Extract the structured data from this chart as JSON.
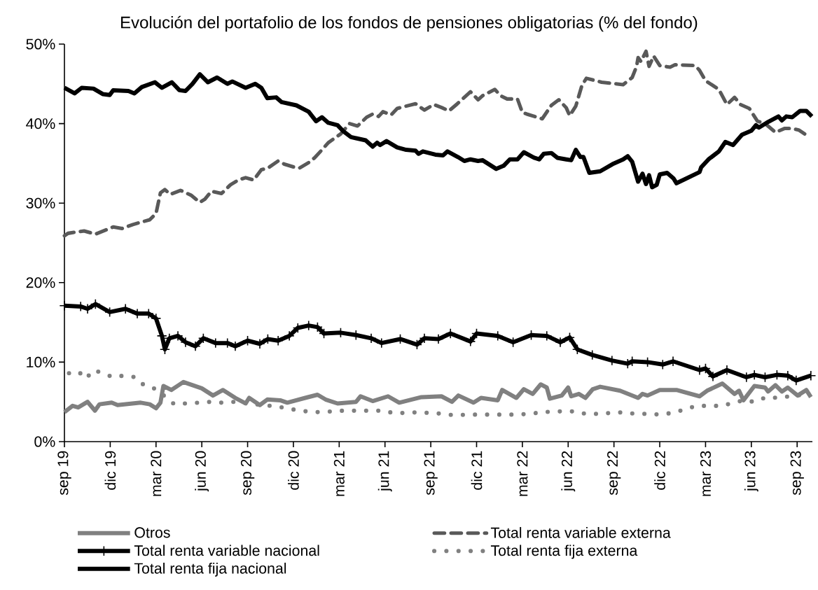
{
  "chart_data": {
    "type": "line",
    "title": "Evolución del portafolio de los fondos de pensiones obligatorias (% del fondo)",
    "xlim": [
      "2019-09-01",
      "2023-10-01"
    ],
    "xticks": [
      {
        "value": "2019-09",
        "label": "sep 19"
      },
      {
        "value": "2019-12",
        "label": "dic 19"
      },
      {
        "value": "2020-03",
        "label": "mar 20"
      },
      {
        "value": "2020-06",
        "label": "jun 20"
      },
      {
        "value": "2020-09",
        "label": "sep 20"
      },
      {
        "value": "2020-12",
        "label": "dic 20"
      },
      {
        "value": "2021-03",
        "label": "mar 21"
      },
      {
        "value": "2021-06",
        "label": "jun 21"
      },
      {
        "value": "2021-09",
        "label": "sep 21"
      },
      {
        "value": "2021-12",
        "label": "dic 21"
      },
      {
        "value": "2022-03",
        "label": "mar 22"
      },
      {
        "value": "2022-06",
        "label": "jun 22"
      },
      {
        "value": "2022-09",
        "label": "sep 22"
      },
      {
        "value": "2022-12",
        "label": "dic 22"
      },
      {
        "value": "2023-03",
        "label": "mar 23"
      },
      {
        "value": "2023-06",
        "label": "jun 23"
      },
      {
        "value": "2023-09",
        "label": "sep 23"
      }
    ],
    "ylim": [
      0,
      50
    ],
    "yticks": [
      {
        "value": 0,
        "label": "0%"
      },
      {
        "value": 10,
        "label": "10%"
      },
      {
        "value": 20,
        "label": "20%"
      },
      {
        "value": 30,
        "label": "30%"
      },
      {
        "value": 40,
        "label": "40%"
      },
      {
        "value": 50,
        "label": "50%"
      }
    ],
    "legend": "bottom",
    "marker": "none",
    "line_style": "solid",
    "series": [
      {
        "name": "Otros",
        "color": "#808080",
        "x": [
          "2019-09-01",
          "2019-09-17",
          "2019-09-28",
          "2019-10-17",
          "2019-11-01",
          "2019-11-10",
          "2019-12-04",
          "2019-12-16",
          "2020-02-01",
          "2020-02-18",
          "2020-03-01",
          "2020-03-10",
          "2020-03-16",
          "2020-04-01",
          "2020-04-25",
          "2020-06-01",
          "2020-06-23",
          "2020-07-13",
          "2020-08-07",
          "2020-08-28",
          "2020-09-04",
          "2020-09-25",
          "2020-10-10",
          "2020-11-05",
          "2020-11-19",
          "2020-12-25",
          "2021-01-19",
          "2021-02-04",
          "2021-02-26",
          "2021-04-04",
          "2021-04-13",
          "2021-05-07",
          "2021-06-07",
          "2021-06-29",
          "2021-08-13",
          "2021-09-22",
          "2021-10-13",
          "2021-10-26",
          "2021-11-25",
          "2021-12-10",
          "2022-01-13",
          "2022-01-22",
          "2022-02-18",
          "2022-03-04",
          "2022-03-22",
          "2022-04-07",
          "2022-04-19",
          "2022-04-25",
          "2022-05-19",
          "2022-06-01",
          "2022-06-07",
          "2022-06-22",
          "2022-07-05",
          "2022-07-20",
          "2022-08-04",
          "2022-09-13",
          "2022-10-19",
          "2022-10-28",
          "2022-11-07",
          "2022-12-01",
          "2023-01-04",
          "2023-02-18",
          "2023-03-04",
          "2023-04-04",
          "2023-04-28",
          "2023-05-07",
          "2023-05-16",
          "2023-06-07",
          "2023-06-28",
          "2023-07-04",
          "2023-07-19",
          "2023-08-01",
          "2023-08-13",
          "2023-09-02",
          "2023-09-19",
          "2023-09-28"
        ],
        "values": [
          3.7,
          4.5,
          4.3,
          5.0,
          3.9,
          4.7,
          4.9,
          4.6,
          4.9,
          4.7,
          4.2,
          4.9,
          7.0,
          6.5,
          7.5,
          6.7,
          5.8,
          6.5,
          5.5,
          4.8,
          5.5,
          4.6,
          5.3,
          5.2,
          4.9,
          5.5,
          5.9,
          5.3,
          4.8,
          5.0,
          5.7,
          5.1,
          5.7,
          4.9,
          5.6,
          5.7,
          5.0,
          5.8,
          4.9,
          5.5,
          5.2,
          6.5,
          5.5,
          6.6,
          6.0,
          7.2,
          6.8,
          5.4,
          5.8,
          6.8,
          5.7,
          6.0,
          5.5,
          6.6,
          6.9,
          6.4,
          5.5,
          6.0,
          5.8,
          6.5,
          6.5,
          5.7,
          6.4,
          7.3,
          6.0,
          6.4,
          5.2,
          7.0,
          6.8,
          6.3,
          7.1,
          6.3,
          6.8,
          5.8,
          6.5,
          5.6
        ]
      },
      {
        "name": "Total renta variable externa",
        "color": "#595959",
        "line_style": "dashed",
        "x": [
          "2019-09-01",
          "2019-09-08",
          "2019-10-10",
          "2019-11-02",
          "2019-12-07",
          "2019-12-25",
          "2020-01-16",
          "2020-02-01",
          "2020-02-18",
          "2020-03-01",
          "2020-03-10",
          "2020-03-19",
          "2020-03-30",
          "2020-04-19",
          "2020-05-10",
          "2020-05-28",
          "2020-06-07",
          "2020-06-20",
          "2020-07-10",
          "2020-07-28",
          "2020-08-13",
          "2020-08-28",
          "2020-09-13",
          "2020-09-28",
          "2020-10-11",
          "2020-11-01",
          "2020-11-13",
          "2020-12-04",
          "2020-12-13",
          "2021-01-01",
          "2021-01-13",
          "2021-01-28",
          "2021-02-09",
          "2021-03-04",
          "2021-03-22",
          "2021-04-07",
          "2021-04-25",
          "2021-05-07",
          "2021-05-19",
          "2021-05-28",
          "2021-06-13",
          "2021-06-25",
          "2021-07-13",
          "2021-08-01",
          "2021-08-19",
          "2021-09-07",
          "2021-09-23",
          "2021-10-07",
          "2021-10-24",
          "2021-11-19",
          "2021-12-04",
          "2021-12-13",
          "2022-01-07",
          "2022-01-19",
          "2022-02-01",
          "2022-02-20",
          "2022-03-01",
          "2022-03-10",
          "2022-04-10",
          "2022-04-28",
          "2022-05-13",
          "2022-05-28",
          "2022-06-04",
          "2022-06-16",
          "2022-06-28",
          "2022-07-07",
          "2022-08-07",
          "2022-09-19",
          "2022-10-07",
          "2022-10-16",
          "2022-10-19",
          "2022-10-25",
          "2022-11-04",
          "2022-11-10",
          "2022-11-19",
          "2022-12-01",
          "2022-12-22",
          "2023-01-01",
          "2023-02-10",
          "2023-02-18",
          "2023-03-01",
          "2023-03-28",
          "2023-04-13",
          "2023-04-28",
          "2023-05-10",
          "2023-05-28",
          "2023-06-13",
          "2023-06-28",
          "2023-07-19",
          "2023-08-07",
          "2023-08-19",
          "2023-09-04",
          "2023-09-16",
          "2023-09-25"
        ],
        "values": [
          25.9,
          26.2,
          26.5,
          26.1,
          27.0,
          26.8,
          27.3,
          27.6,
          27.9,
          28.7,
          31.3,
          31.7,
          31.1,
          31.6,
          31.0,
          30.1,
          30.5,
          31.5,
          31.2,
          32.3,
          32.9,
          33.2,
          32.9,
          34.2,
          34.4,
          35.3,
          34.9,
          34.5,
          34.4,
          35.1,
          35.7,
          36.7,
          37.6,
          38.7,
          40.0,
          39.7,
          40.8,
          41.2,
          40.9,
          41.5,
          41.1,
          41.9,
          42.2,
          42.5,
          41.7,
          42.4,
          42.0,
          41.6,
          42.5,
          44.0,
          43.0,
          43.5,
          44.3,
          43.5,
          43.1,
          43.1,
          41.4,
          41.2,
          40.6,
          42.3,
          43.0,
          42.0,
          41.0,
          42.2,
          44.8,
          45.7,
          45.2,
          44.9,
          45.8,
          47.2,
          48.3,
          47.8,
          49.1,
          47.2,
          48.5,
          47.3,
          47.1,
          47.4,
          47.3,
          46.7,
          45.4,
          44.3,
          42.4,
          43.3,
          42.4,
          41.9,
          40.3,
          40.0,
          38.9,
          39.4,
          39.4,
          39.2,
          38.7,
          38.7
        ]
      },
      {
        "name": "Total renta variable nacional",
        "color": "#000000",
        "marker": "cross",
        "x": [
          "2019-09-01",
          "2019-10-03",
          "2019-10-17",
          "2019-11-02",
          "2019-11-30",
          "2020-01-01",
          "2020-01-25",
          "2020-02-16",
          "2020-03-01",
          "2020-03-13",
          "2020-03-19",
          "2020-03-28",
          "2020-04-14",
          "2020-04-29",
          "2020-05-19",
          "2020-06-04",
          "2020-06-28",
          "2020-07-22",
          "2020-08-07",
          "2020-09-01",
          "2020-09-25",
          "2020-10-11",
          "2020-11-01",
          "2020-11-23",
          "2020-12-10",
          "2021-01-01",
          "2021-01-19",
          "2021-02-01",
          "2021-03-04",
          "2021-04-04",
          "2021-05-04",
          "2021-05-25",
          "2021-07-01",
          "2021-08-04",
          "2021-08-19",
          "2021-09-16",
          "2021-10-10",
          "2021-11-19",
          "2021-12-01",
          "2022-01-13",
          "2022-02-12",
          "2022-03-19",
          "2022-04-19",
          "2022-05-16",
          "2022-06-04",
          "2022-06-19",
          "2022-07-19",
          "2022-08-28",
          "2022-09-28",
          "2022-10-07",
          "2022-11-07",
          "2022-12-07",
          "2022-12-28",
          "2023-02-18",
          "2023-03-01",
          "2023-03-16",
          "2023-04-13",
          "2023-05-22",
          "2023-06-07",
          "2023-06-28",
          "2023-07-22",
          "2023-08-13",
          "2023-08-30",
          "2023-09-28"
        ],
        "values": [
          17.1,
          17.0,
          16.7,
          17.3,
          16.3,
          16.7,
          16.1,
          16.1,
          15.5,
          13.3,
          11.6,
          13.0,
          13.3,
          12.5,
          12.0,
          13.0,
          12.4,
          12.4,
          12.0,
          12.7,
          12.3,
          12.9,
          12.7,
          13.3,
          14.3,
          14.6,
          14.4,
          13.6,
          13.7,
          13.4,
          13.0,
          12.4,
          12.9,
          12.2,
          13.0,
          12.9,
          13.6,
          12.6,
          13.6,
          13.3,
          12.5,
          13.4,
          13.3,
          12.5,
          13.1,
          11.6,
          10.9,
          10.2,
          9.8,
          10.1,
          10.0,
          9.7,
          10.1,
          9.0,
          9.2,
          8.2,
          9.0,
          8.1,
          8.4,
          8.1,
          8.4,
          8.3,
          7.7,
          8.3
        ]
      },
      {
        "name": "Total renta fija externa",
        "color": "#808080",
        "line_style": "dotted",
        "x": [
          "2019-09-10",
          "2019-09-29",
          "2019-10-13",
          "2019-10-30",
          "2019-11-20",
          "2019-12-07",
          "2019-12-28",
          "2020-01-21",
          "2020-02-07",
          "2020-03-01",
          "2020-04-07",
          "2020-04-29",
          "2020-05-25",
          "2020-06-17",
          "2020-07-10",
          "2020-08-04",
          "2020-10-16",
          "2020-11-10",
          "2020-12-04",
          "2020-12-28",
          "2021-01-22",
          "2021-02-15",
          "2021-03-11",
          "2021-04-05",
          "2021-04-29",
          "2021-05-23",
          "2021-06-19",
          "2021-07-13",
          "2021-08-07",
          "2021-09-01",
          "2021-09-25",
          "2021-10-19",
          "2021-11-13",
          "2021-12-07",
          "2022-01-02",
          "2022-01-28",
          "2022-02-20",
          "2022-03-16",
          "2022-04-10",
          "2022-05-04",
          "2022-05-28",
          "2022-06-13",
          "2022-07-05",
          "2022-08-01",
          "2022-08-25",
          "2022-09-19",
          "2022-10-13",
          "2022-11-07",
          "2022-12-01",
          "2022-12-25",
          "2023-01-19",
          "2023-02-12",
          "2023-03-07",
          "2023-04-01",
          "2023-04-22",
          "2023-05-16",
          "2023-06-07",
          "2023-07-01",
          "2023-07-25",
          "2023-08-16",
          "2023-09-10"
        ],
        "values": [
          8.6,
          8.8,
          7.9,
          9.0,
          8.5,
          8.1,
          8.3,
          8.1,
          7.1,
          6.6,
          4.7,
          4.8,
          4.9,
          5.0,
          4.9,
          5.0,
          4.5,
          4.3,
          4.0,
          3.8,
          3.7,
          3.8,
          3.9,
          3.9,
          3.9,
          3.9,
          3.6,
          3.6,
          3.7,
          3.6,
          3.5,
          3.3,
          3.4,
          3.4,
          3.4,
          3.4,
          3.4,
          3.5,
          3.7,
          3.8,
          3.8,
          3.8,
          3.5,
          3.5,
          3.6,
          3.7,
          3.5,
          3.5,
          3.4,
          3.6,
          4.0,
          4.5,
          4.5,
          4.5,
          4.8,
          5.2,
          5.0,
          5.6,
          5.5,
          5.7,
          5.9
        ]
      },
      {
        "name": "Total renta fija nacional",
        "color": "#000000",
        "x": [
          "2019-09-01",
          "2019-09-21",
          "2019-10-05",
          "2019-10-29",
          "2019-11-17",
          "2019-11-30",
          "2019-12-07",
          "2020-01-07",
          "2020-01-19",
          "2020-02-03",
          "2020-02-28",
          "2020-03-13",
          "2020-04-02",
          "2020-04-17",
          "2020-04-29",
          "2020-05-13",
          "2020-05-28",
          "2020-06-13",
          "2020-07-01",
          "2020-07-22",
          "2020-08-01",
          "2020-08-28",
          "2020-09-16",
          "2020-09-28",
          "2020-10-10",
          "2020-10-28",
          "2020-11-08",
          "2020-12-07",
          "2021-01-01",
          "2021-01-16",
          "2021-01-28",
          "2021-02-09",
          "2021-02-26",
          "2021-03-10",
          "2021-03-25",
          "2021-04-23",
          "2021-05-07",
          "2021-05-16",
          "2021-05-22",
          "2021-06-04",
          "2021-06-25",
          "2021-07-13",
          "2021-08-01",
          "2021-08-07",
          "2021-08-16",
          "2021-09-10",
          "2021-09-25",
          "2021-10-04",
          "2021-10-25",
          "2021-11-07",
          "2021-11-19",
          "2021-12-04",
          "2021-12-13",
          "2022-01-10",
          "2022-01-25",
          "2022-02-06",
          "2022-02-20",
          "2022-03-04",
          "2022-03-25",
          "2022-04-04",
          "2022-04-13",
          "2022-04-28",
          "2022-05-10",
          "2022-05-28",
          "2022-06-07",
          "2022-06-16",
          "2022-06-25",
          "2022-07-01",
          "2022-07-13",
          "2022-08-04",
          "2022-08-29",
          "2022-09-19",
          "2022-09-28",
          "2022-10-07",
          "2022-10-19",
          "2022-10-28",
          "2022-11-04",
          "2022-11-10",
          "2022-11-16",
          "2022-11-25",
          "2022-12-01",
          "2022-12-16",
          "2022-12-29",
          "2023-01-04",
          "2023-02-18",
          "2023-02-21",
          "2023-03-07",
          "2023-03-28",
          "2023-04-10",
          "2023-04-25",
          "2023-05-13",
          "2023-06-01",
          "2023-06-10",
          "2023-06-16",
          "2023-07-01",
          "2023-07-25",
          "2023-08-01",
          "2023-08-10",
          "2023-08-22",
          "2023-09-07",
          "2023-09-19",
          "2023-09-30"
        ],
        "values": [
          44.5,
          43.8,
          44.5,
          44.4,
          43.7,
          43.6,
          44.2,
          44.1,
          43.8,
          44.6,
          45.2,
          44.5,
          45.2,
          44.2,
          44.1,
          45.0,
          46.2,
          45.2,
          45.8,
          45.0,
          45.3,
          44.5,
          45.0,
          44.5,
          43.2,
          43.3,
          42.7,
          42.3,
          41.5,
          40.3,
          40.8,
          40.1,
          39.8,
          39.0,
          38.3,
          37.9,
          37.1,
          37.6,
          37.3,
          37.8,
          37.0,
          36.7,
          36.6,
          36.2,
          36.5,
          36.1,
          36.0,
          36.5,
          35.8,
          35.3,
          35.5,
          35.3,
          35.4,
          34.3,
          34.7,
          35.5,
          35.5,
          36.4,
          35.7,
          35.5,
          36.2,
          36.3,
          35.7,
          35.5,
          35.4,
          36.7,
          35.8,
          35.8,
          33.8,
          34.0,
          34.9,
          35.5,
          35.9,
          35.2,
          32.7,
          33.7,
          32.4,
          33.5,
          32.0,
          32.3,
          33.6,
          33.8,
          33.1,
          32.5,
          33.9,
          34.5,
          35.5,
          36.5,
          37.7,
          37.3,
          38.6,
          39.1,
          39.8,
          39.5,
          40.1,
          40.9,
          40.4,
          40.9,
          40.8,
          41.6,
          41.6,
          40.9
        ]
      }
    ]
  }
}
